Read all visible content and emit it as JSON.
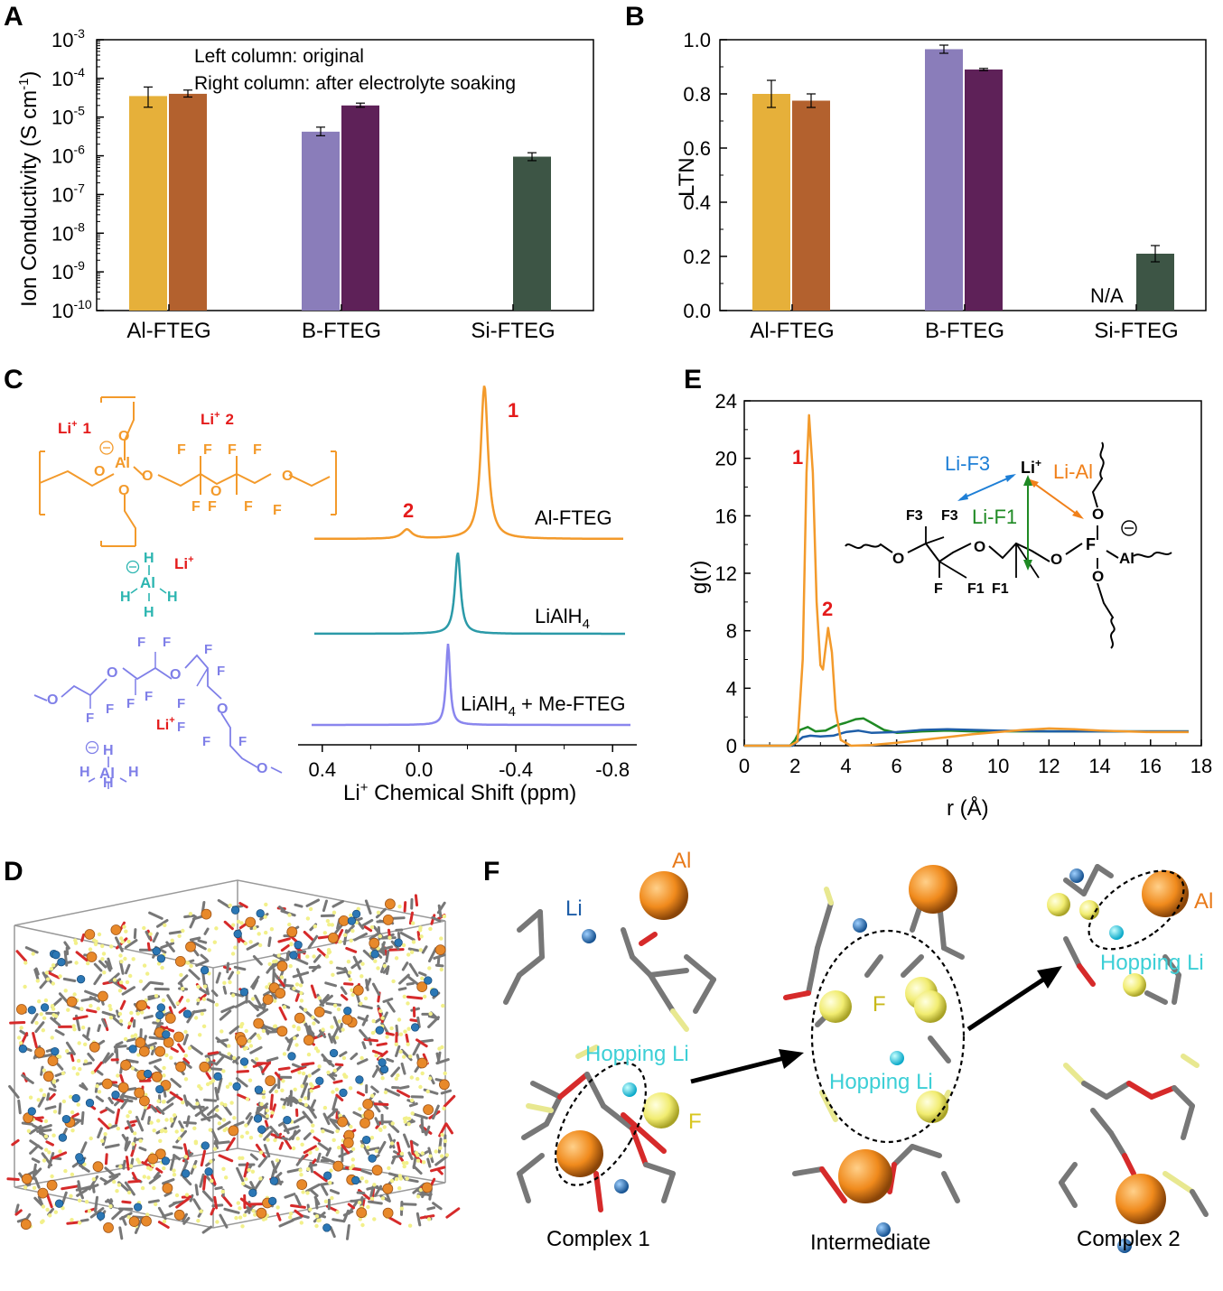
{
  "panels": {
    "A": "A",
    "B": "B",
    "C": "C",
    "D": "D",
    "E": "E",
    "F": "F"
  },
  "chart_data": [
    {
      "id": "A",
      "type": "bar",
      "yscale": "log",
      "ylabel": "Ion Conductivity (S cm",
      "ylabel_sup": "-1",
      "ylabel_close": ")",
      "ylim": [
        1e-10,
        0.001
      ],
      "yticks": [
        {
          "base": "10",
          "exp": "-10"
        },
        {
          "base": "10",
          "exp": "-9"
        },
        {
          "base": "10",
          "exp": "-8"
        },
        {
          "base": "10",
          "exp": "-7"
        },
        {
          "base": "10",
          "exp": "-6"
        },
        {
          "base": "10",
          "exp": "-5"
        },
        {
          "base": "10",
          "exp": "-4"
        },
        {
          "base": "10",
          "exp": "-3"
        }
      ],
      "categories": [
        "Al-FTEG",
        "B-FTEG",
        "Si-FTEG"
      ],
      "series": [
        {
          "name": "original",
          "colors": [
            "#e6b03a",
            "#8a7dba",
            "#1fa84f"
          ],
          "values": [
            3.5e-05,
            4.2e-06,
            1e-10
          ],
          "err_low": [
            1.8e-05,
            3.3e-06,
            null
          ],
          "err_high": [
            6e-05,
            5.5e-06,
            null
          ]
        },
        {
          "name": "after electrolyte soaking",
          "colors": [
            "#b3612e",
            "#5e2158",
            "#3d5545"
          ],
          "values": [
            4e-05,
            2e-05,
            9.5e-07
          ],
          "err_low": [
            3.3e-05,
            1.8e-05,
            7.5e-07
          ],
          "err_high": [
            5e-05,
            2.3e-05,
            1.2e-06
          ]
        }
      ],
      "annotations": [
        "Left column: original",
        "Right column: after electrolyte soaking"
      ]
    },
    {
      "id": "B",
      "type": "bar",
      "ylabel": "LTN",
      "ylim": [
        0,
        1.0
      ],
      "yticks": [
        "0.0",
        "0.2",
        "0.4",
        "0.6",
        "0.8",
        "1.0"
      ],
      "categories": [
        "Al-FTEG",
        "B-FTEG",
        "Si-FTEG"
      ],
      "series": [
        {
          "colors": [
            "#e6b03a",
            "#8a7dba",
            "#1fa84f"
          ],
          "values": [
            0.8,
            0.965,
            null
          ],
          "errors": [
            0.05,
            0.015,
            null
          ]
        },
        {
          "colors": [
            "#b3612e",
            "#5e2158",
            "#3d5545"
          ],
          "values": [
            0.775,
            0.89,
            0.21
          ],
          "errors": [
            0.025,
            0.004,
            0.03
          ]
        }
      ],
      "annotations": [
        "N/A"
      ]
    },
    {
      "id": "C",
      "type": "line",
      "xlabel": "Li",
      "xlabel_sup": "+",
      "xlabel_rest": " Chemical Shift (ppm)",
      "xlim": [
        0.5,
        -0.9
      ],
      "xticks": [
        "0.4",
        "0.0",
        "-0.4",
        "-0.8"
      ],
      "series": [
        {
          "name": "Al-FTEG",
          "color": "#f39a2b",
          "peaks": [
            {
              "x": -0.27,
              "h": 1.0,
              "w": 0.018
            },
            {
              "x": 0.05,
              "h": 0.06,
              "w": 0.025
            }
          ]
        },
        {
          "name": "LiAlH",
          "name_sub": "4",
          "color": "#2b9aa8",
          "peaks": [
            {
              "x": -0.16,
              "h": 0.75,
              "w": 0.014
            }
          ]
        },
        {
          "name": "LiAlH",
          "name_sub": "4",
          "name_rest": " + Me-FTEG",
          "color": "#8a86ee",
          "peaks": [
            {
              "x": -0.12,
              "h": 0.72,
              "w": 0.01
            }
          ]
        }
      ],
      "annotations": [
        "1",
        "2"
      ]
    },
    {
      "id": "E",
      "type": "line",
      "xlabel": "r (Å)",
      "ylabel": "g(r)",
      "xlim": [
        0,
        18
      ],
      "ylim": [
        0,
        24
      ],
      "xticks": [
        "0",
        "2",
        "4",
        "6",
        "8",
        "10",
        "12",
        "14",
        "16",
        "18"
      ],
      "yticks": [
        "0",
        "4",
        "8",
        "12",
        "16",
        "20",
        "24"
      ],
      "series": [
        {
          "name": "Li-Al",
          "color": "#f39a2b",
          "points": [
            [
              0,
              0
            ],
            [
              1.8,
              0
            ],
            [
              2.1,
              0.3
            ],
            [
              2.3,
              6
            ],
            [
              2.45,
              19
            ],
            [
              2.55,
              23
            ],
            [
              2.7,
              19
            ],
            [
              2.85,
              10
            ],
            [
              3.0,
              5.6
            ],
            [
              3.1,
              5.3
            ],
            [
              3.2,
              6.8
            ],
            [
              3.3,
              8.2
            ],
            [
              3.45,
              6.5
            ],
            [
              3.6,
              2.5
            ],
            [
              3.8,
              0.4
            ],
            [
              4.2,
              0
            ],
            [
              5,
              0.05
            ],
            [
              6,
              0.2
            ],
            [
              7,
              0.4
            ],
            [
              8,
              0.6
            ],
            [
              9,
              0.8
            ],
            [
              10,
              0.95
            ],
            [
              11,
              1.1
            ],
            [
              12,
              1.2
            ],
            [
              13,
              1.15
            ],
            [
              14,
              1.05
            ],
            [
              15,
              1.0
            ],
            [
              16,
              0.95
            ],
            [
              17.5,
              0.95
            ]
          ]
        },
        {
          "name": "Li-F1",
          "color": "#1f8a24",
          "points": [
            [
              0,
              0
            ],
            [
              1.8,
              0
            ],
            [
              2.0,
              0.4
            ],
            [
              2.2,
              1.1
            ],
            [
              2.5,
              1.3
            ],
            [
              2.8,
              1.0
            ],
            [
              3.2,
              1.05
            ],
            [
              3.6,
              1.4
            ],
            [
              4.0,
              1.6
            ],
            [
              4.4,
              1.85
            ],
            [
              4.7,
              1.9
            ],
            [
              5.0,
              1.6
            ],
            [
              5.5,
              1.1
            ],
            [
              6,
              0.9
            ],
            [
              7,
              1.0
            ],
            [
              8,
              1.05
            ],
            [
              9,
              1.0
            ],
            [
              10,
              1.0
            ],
            [
              12,
              1.0
            ],
            [
              14,
              1.0
            ],
            [
              16,
              1.0
            ],
            [
              17.5,
              1.0
            ]
          ]
        },
        {
          "name": "Li-F3",
          "color": "#1e5ea8",
          "points": [
            [
              0,
              0
            ],
            [
              1.9,
              0
            ],
            [
              2.1,
              0.3
            ],
            [
              2.3,
              0.6
            ],
            [
              2.6,
              0.7
            ],
            [
              3.0,
              0.65
            ],
            [
              3.5,
              0.7
            ],
            [
              4.0,
              0.95
            ],
            [
              4.5,
              1.05
            ],
            [
              5,
              0.9
            ],
            [
              6,
              0.95
            ],
            [
              7,
              1.1
            ],
            [
              8,
              1.15
            ],
            [
              9,
              1.1
            ],
            [
              10,
              1.05
            ],
            [
              12,
              1.0
            ],
            [
              14,
              1.0
            ],
            [
              16,
              1.0
            ],
            [
              17.5,
              1.0
            ]
          ]
        }
      ],
      "annotations": [
        "1",
        "2",
        "Li-F3",
        "Li",
        "+",
        "Li-Al",
        "F3",
        "F3",
        "Li-F1",
        "O",
        "O",
        "O",
        "O",
        "O",
        "Al",
        "F",
        "F",
        "F1",
        "F1"
      ]
    }
  ],
  "molecules": {
    "c1_labels": [
      "Li",
      "+",
      "1",
      "Li",
      "+",
      "2",
      "O",
      "O",
      "O",
      "O",
      "Al",
      "F",
      "F",
      "F",
      "F",
      "F",
      "F",
      "F",
      "F",
      "O",
      "O"
    ],
    "c2_labels": [
      "H",
      "Al",
      "H",
      "H",
      "H",
      "Li",
      "+"
    ],
    "c3_labels": [
      "O",
      "O",
      "O",
      "O",
      "O",
      "F",
      "F",
      "F",
      "F",
      "F",
      "F",
      "F",
      "F",
      "F",
      "F",
      "F",
      "F",
      "Li",
      "+",
      "H",
      "Al",
      "H",
      "H",
      "H"
    ]
  },
  "panel_f": {
    "labels": [
      "Al",
      "Li",
      "Hopping Li",
      "F",
      "F",
      "Hopping Li",
      "Al",
      "Hopping Li"
    ],
    "captions": [
      "Complex 1",
      "Intermediate",
      "Complex 2"
    ]
  }
}
